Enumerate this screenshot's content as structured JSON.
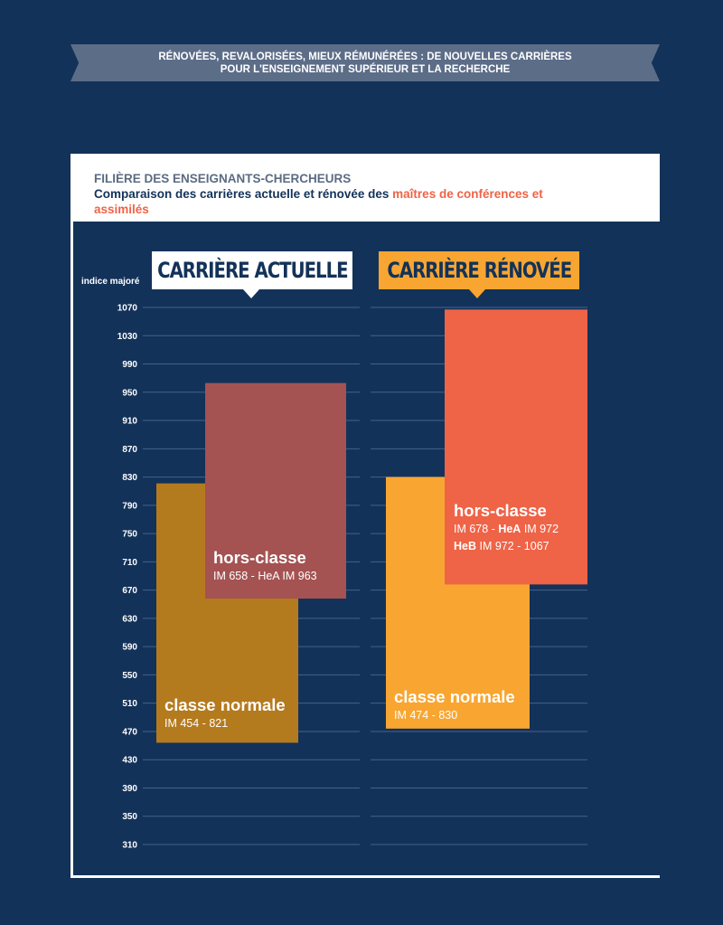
{
  "banner": {
    "line1": "RÉNOVÉES, REVALORISÉES, MIEUX RÉMUNÉRÉES : DE NOUVELLES CARRIÈRES",
    "line2": "POUR L'ENSEIGNEMENT SUPÉRIEUR ET LA RECHERCHE"
  },
  "colors": {
    "background": "#133259",
    "classe_normale_actuelle": "#b47a1e",
    "hors_classe_actuelle": "#a55252",
    "classe_normale_renovee": "#f8a631",
    "hors_classe_renovee": "#ef6347",
    "accent_text": "#ef6347"
  },
  "chart_data": {
    "type": "bar",
    "subtitle": "FILIÈRE DES ENSEIGNANTS-CHERCHEURS",
    "title_prefix": "Comparaison des carrières actuelle et rénovée des ",
    "title_accent": "maîtres de conférences et assimilés",
    "ylabel": "indice majoré",
    "yticks": [
      1070,
      1030,
      990,
      950,
      910,
      870,
      830,
      790,
      750,
      710,
      670,
      630,
      590,
      550,
      510,
      470,
      430,
      390,
      350,
      310
    ],
    "ylim": [
      310,
      1070
    ],
    "grid": true,
    "groups": [
      {
        "name": "CARRIÈRE ACTUELLE",
        "bars": [
          {
            "name": "classe normale",
            "min": 454,
            "max": 821,
            "color": "#b47a1e",
            "detail": [
              "IM 454 - 821"
            ]
          },
          {
            "name": "hors-classe",
            "min": 658,
            "max": 963,
            "color": "#a55252",
            "detail": [
              "IM 658 - HeA IM 963"
            ]
          }
        ]
      },
      {
        "name": "CARRIÈRE RÉNOVÉE",
        "bars": [
          {
            "name": "classe normale",
            "min": 474,
            "max": 830,
            "color": "#f8a631",
            "detail": [
              "IM 474 - 830"
            ]
          },
          {
            "name": "hors-classe",
            "min": 678,
            "max": 1067,
            "color": "#ef6347",
            "detail": [
              "IM 678 - HeA IM 972",
              "HeB IM 972 - 1067"
            ]
          }
        ]
      }
    ]
  },
  "labels": {
    "actuelle_normale": {
      "title": "classe normale",
      "line1": "IM 454 - 821"
    },
    "actuelle_hors": {
      "title": "hors-classe",
      "line1": "IM 658 - HeA IM 963"
    },
    "renovee_normale": {
      "title": "classe normale",
      "line1": "IM 474 - 830"
    },
    "renovee_hors": {
      "title": "hors-classe",
      "line1_a": "IM 678 - ",
      "line1_b": "HeA",
      "line1_c": " IM 972",
      "line2_a": "HeB",
      "line2_b": " IM 972 - 1067"
    }
  }
}
